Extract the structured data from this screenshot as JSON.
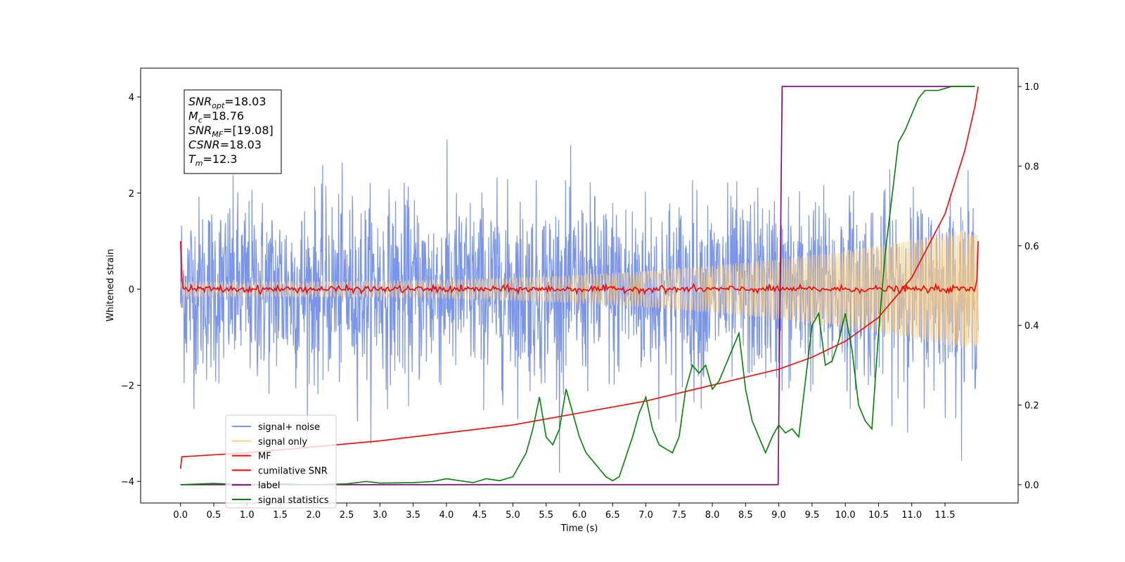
{
  "chart_data": {
    "type": "line",
    "xlabel": "Time (s)",
    "ylabel": "Whitened strain",
    "xlim": [
      -0.6,
      12.6
    ],
    "ylim": [
      -4.45,
      4.6
    ],
    "y2lim": [
      -0.046,
      1.046
    ],
    "x_ticks": [
      "0.0",
      "0.5",
      "1.0",
      "1.5",
      "2.0",
      "2.5",
      "3.0",
      "3.5",
      "4.0",
      "4.5",
      "5.0",
      "5.5",
      "6.0",
      "6.5",
      "7.0",
      "7.5",
      "8.0",
      "8.5",
      "9.0",
      "9.5",
      "10.0",
      "10.5",
      "11.0",
      "11.5"
    ],
    "y_ticks": [
      "−4",
      "−2",
      "0",
      "2",
      "4"
    ],
    "y2_ticks": [
      "0.0",
      "0.2",
      "0.4",
      "0.6",
      "0.8",
      "1.0"
    ],
    "grid": false,
    "legend_position": "bottom-left",
    "annotation": {
      "lines": [
        {
          "sym": "SNR",
          "sub": "opt",
          "value": "=18.03"
        },
        {
          "sym": "M",
          "sub": "c",
          "value": "=18.76"
        },
        {
          "sym": "SNR",
          "sub": "MF",
          "value": "=[19.08]"
        },
        {
          "sym": "CSNR",
          "sub": "",
          "value": "=18.03"
        },
        {
          "sym": "T",
          "sub": "m",
          "value": "=12.3"
        }
      ]
    },
    "series": [
      {
        "name": "signal+ noise",
        "color": "#7b96e8",
        "axis": "left",
        "kind": "noise",
        "t_range": [
          0,
          12.0
        ],
        "approx_envelope": 2.5,
        "min": -4.05,
        "max": 3.35
      },
      {
        "name": "signal only",
        "color": "#ffd080",
        "axis": "left",
        "kind": "chirp",
        "t_range": [
          0,
          12.0
        ],
        "amplitude_start": 0.15,
        "amplitude_end": 1.3
      },
      {
        "name": "MF",
        "color": "#ff0000",
        "axis": "left",
        "kind": "mf",
        "t_range": [
          0,
          12.0
        ],
        "start": 1.0,
        "end": 1.0,
        "baseline": 0.0
      },
      {
        "name": "cumilative SNR",
        "color": "#ff0000",
        "axis": "right",
        "x": [
          0,
          0.02,
          1,
          2,
          3,
          4,
          5,
          6,
          7,
          8,
          8.5,
          9,
          9.5,
          10,
          10.5,
          11,
          11.5,
          11.8,
          11.95,
          12.0
        ],
        "y": [
          0.04,
          0.07,
          0.08,
          0.095,
          0.11,
          0.13,
          0.15,
          0.18,
          0.21,
          0.25,
          0.27,
          0.29,
          0.32,
          0.36,
          0.42,
          0.52,
          0.68,
          0.84,
          0.95,
          1.0
        ]
      },
      {
        "name": "label",
        "color": "#800080",
        "axis": "right",
        "x": [
          0,
          8.99,
          9.05,
          11.95
        ],
        "y": [
          0.0,
          0.0,
          1.0,
          1.0
        ]
      },
      {
        "name": "signal statistics",
        "color": "#008000",
        "axis": "right",
        "x": [
          0,
          0.5,
          1.0,
          1.5,
          2.0,
          2.5,
          2.8,
          3.0,
          3.5,
          3.8,
          4.0,
          4.2,
          4.4,
          4.6,
          4.8,
          5.0,
          5.2,
          5.3,
          5.4,
          5.5,
          5.6,
          5.7,
          5.8,
          5.9,
          6.0,
          6.1,
          6.2,
          6.3,
          6.4,
          6.5,
          6.6,
          6.7,
          6.8,
          6.9,
          7.0,
          7.1,
          7.2,
          7.3,
          7.4,
          7.5,
          7.6,
          7.7,
          7.8,
          7.9,
          8.0,
          8.1,
          8.2,
          8.3,
          8.4,
          8.5,
          8.6,
          8.7,
          8.8,
          8.9,
          9.0,
          9.1,
          9.2,
          9.3,
          9.4,
          9.5,
          9.6,
          9.7,
          9.8,
          9.9,
          10.0,
          10.1,
          10.2,
          10.3,
          10.4,
          10.5,
          10.6,
          10.7,
          10.8,
          10.9,
          11.0,
          11.1,
          11.2,
          11.3,
          11.4,
          11.5,
          11.6,
          11.7,
          11.8,
          11.9,
          11.95
        ],
        "y": [
          0.0,
          0.003,
          0.0,
          0.002,
          0.0,
          0.002,
          0.008,
          0.004,
          0.005,
          0.008,
          0.015,
          0.01,
          0.005,
          0.015,
          0.01,
          0.02,
          0.08,
          0.14,
          0.22,
          0.12,
          0.1,
          0.14,
          0.24,
          0.18,
          0.12,
          0.08,
          0.06,
          0.04,
          0.02,
          0.01,
          0.02,
          0.07,
          0.12,
          0.18,
          0.22,
          0.14,
          0.1,
          0.09,
          0.08,
          0.12,
          0.24,
          0.3,
          0.28,
          0.3,
          0.24,
          0.26,
          0.3,
          0.34,
          0.38,
          0.24,
          0.16,
          0.12,
          0.08,
          0.12,
          0.15,
          0.13,
          0.14,
          0.12,
          0.26,
          0.4,
          0.43,
          0.3,
          0.31,
          0.36,
          0.43,
          0.34,
          0.2,
          0.16,
          0.14,
          0.38,
          0.58,
          0.72,
          0.86,
          0.89,
          0.93,
          0.97,
          0.99,
          0.99,
          0.99,
          0.995,
          1.0,
          1.0,
          1.0,
          1.0,
          1.0
        ]
      }
    ]
  }
}
